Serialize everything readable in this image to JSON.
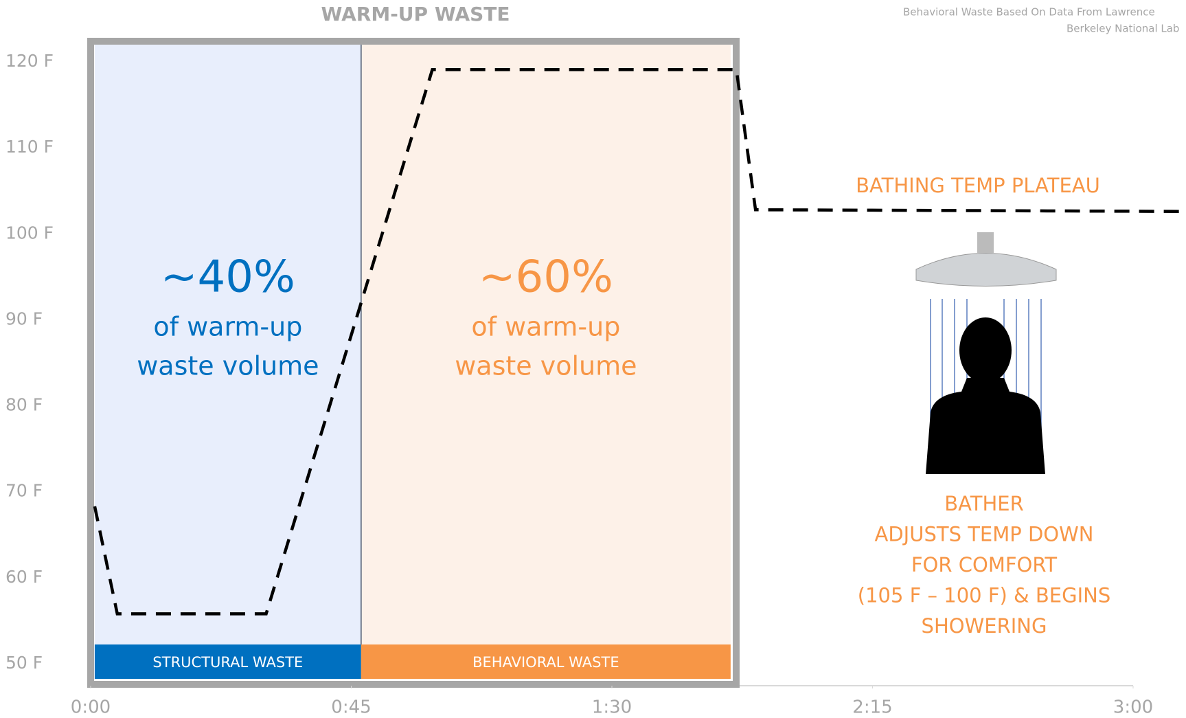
{
  "chart_data": {
    "type": "line",
    "title": "WARM-UP WASTE",
    "source": [
      "Behavioral Waste Based On Data From Lawrence",
      "Berkeley National Lab"
    ],
    "xlim": [
      0,
      189
    ],
    "ylim": [
      47,
      122
    ],
    "xticks": [
      {
        "value": 0,
        "label": "0:00"
      },
      {
        "value": 45,
        "label": "0:45"
      },
      {
        "value": 90,
        "label": "1:30"
      },
      {
        "value": 135,
        "label": "2:15"
      },
      {
        "value": 180,
        "label": "3:00"
      }
    ],
    "yticks": [
      {
        "value": 50,
        "label": "50 F"
      },
      {
        "value": 60,
        "label": "60 F"
      },
      {
        "value": 70,
        "label": "70 F"
      },
      {
        "value": 80,
        "label": "80 F"
      },
      {
        "value": 90,
        "label": "90 F"
      },
      {
        "value": 100,
        "label": "100 F"
      },
      {
        "value": 110,
        "label": "110 F"
      },
      {
        "value": 120,
        "label": "120 F"
      }
    ],
    "series": [
      {
        "color": "#000000",
        "x": [
          0.7,
          4.6,
          30.3,
          59,
          111.5,
          114.8,
          188.9
        ],
        "values": [
          68.3,
          55.8,
          55.8,
          119.1,
          119.1,
          102.8,
          102.6
        ]
      }
    ],
    "regions": [
      {
        "label": "STRUCTURAL WASTE",
        "start": 0.7,
        "end": 46.7,
        "fill": "#e8eefc",
        "color": "#0070c0",
        "share": "~40%",
        "text": [
          "of warm-up",
          "waste volume"
        ]
      },
      {
        "label": "BEHAVIORAL WASTE",
        "start": 46.7,
        "end": 110.5,
        "fill": "#fdf1e8",
        "color": "#f79646",
        "share": "~60%",
        "text": [
          "of warm-up",
          "waste volume"
        ]
      }
    ],
    "annotations": {
      "plateau": "BATHING TEMP PLATEAU",
      "bather": [
        "BATHER",
        "ADJUSTS TEMP DOWN",
        "FOR COMFORT",
        "(105 F – 100 F) & BEGINS",
        "SHOWERING"
      ]
    }
  }
}
